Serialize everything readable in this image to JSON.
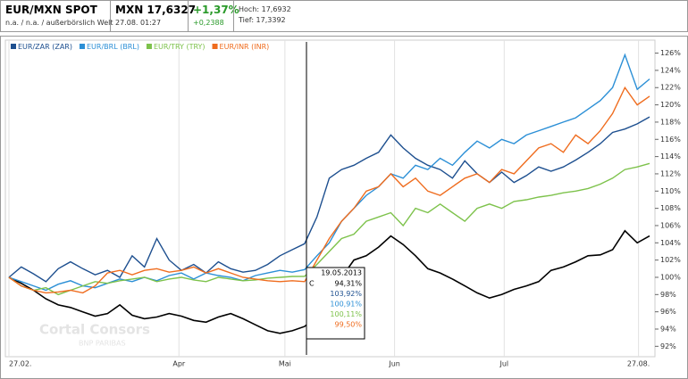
{
  "header": {
    "name": "EUR/MXN SPOT",
    "venue": "n.a. / n.a. / außerbörslich Welt",
    "price": "MXN 17,6327",
    "time": "27.08. 01:27",
    "change_pct": "+1,37%",
    "change_abs": "+0,2388",
    "high": "Hoch: 17,6932",
    "low": "Tief: 17,3392"
  },
  "chart_data": {
    "type": "line",
    "x": [
      0,
      1,
      2,
      3,
      4,
      5,
      6,
      7,
      8,
      9,
      10,
      11,
      12,
      13,
      14,
      15,
      16,
      17,
      18,
      19,
      20,
      21,
      22,
      23,
      24,
      25,
      26,
      27,
      28,
      29,
      30,
      31,
      32,
      33,
      34,
      35,
      36,
      37,
      38,
      39,
      40,
      41,
      42,
      43,
      44,
      45,
      46,
      47,
      48,
      49,
      50,
      51,
      52
    ],
    "series": [
      {
        "color": "#000000",
        "values": [
          100,
          99.3,
          98.5,
          97.5,
          96.8,
          96.5,
          96,
          95.5,
          95.8,
          96.8,
          95.6,
          95.2,
          95.4,
          95.8,
          95.5,
          95,
          94.8,
          95.4,
          95.8,
          95.2,
          94.5,
          93.8,
          93.5,
          93.8,
          94.3,
          95.5,
          97.5,
          100,
          102,
          102.5,
          103.5,
          104.8,
          103.8,
          102.5,
          101,
          100.5,
          99.8,
          99,
          98.2,
          97.6,
          98,
          98.6,
          99,
          99.5,
          100.8,
          101.2,
          101.8,
          102.5,
          102.6,
          103.2,
          105.4,
          104,
          104.8
        ]
      },
      {
        "name": "EUR/ZAR (ZAR)",
        "color": "#1d4f8f",
        "values": [
          100,
          101.2,
          100.4,
          99.5,
          101,
          101.8,
          101,
          100.3,
          100.8,
          100,
          102.5,
          101.2,
          104.5,
          102,
          100.8,
          101.5,
          100.5,
          101.8,
          101,
          100.6,
          100.8,
          101.5,
          102.5,
          103.2,
          103.9,
          107,
          111.5,
          112.5,
          113,
          113.8,
          114.5,
          116.5,
          115,
          113.8,
          113,
          112.5,
          111.5,
          113.5,
          112,
          111,
          112.2,
          111,
          111.8,
          112.8,
          112.3,
          112.8,
          113.6,
          114.5,
          115.5,
          116.8,
          117.2,
          117.8,
          118.6
        ]
      },
      {
        "name": "EUR/BRL (BRL)",
        "color": "#2b8fd6",
        "values": [
          100,
          99.5,
          99,
          98.5,
          99.2,
          99.6,
          99,
          98.8,
          99.3,
          99.8,
          99.5,
          100,
          99.6,
          100.2,
          100.5,
          99.8,
          100.5,
          100.2,
          100,
          99.6,
          100.2,
          100.5,
          100.8,
          100.6,
          100.9,
          102.5,
          104,
          106.5,
          108,
          109.5,
          110.5,
          112,
          111.5,
          113,
          112.5,
          113.8,
          113,
          114.5,
          115.8,
          115,
          116,
          115.5,
          116.5,
          117,
          117.5,
          118,
          118.5,
          119.5,
          120.5,
          122,
          125.8,
          121.8,
          123
        ]
      },
      {
        "name": "EUR/TRY (TRY)",
        "color": "#7dc24b",
        "values": [
          100,
          99,
          98.5,
          98.8,
          98,
          98.5,
          99,
          99.5,
          99.3,
          99.6,
          99.8,
          100,
          99.5,
          99.8,
          100,
          99.7,
          99.5,
          100,
          99.8,
          99.6,
          99.7,
          99.9,
          100,
          100.1,
          100.11,
          101.5,
          103,
          104.5,
          105,
          106.5,
          107,
          107.5,
          106,
          108,
          107.5,
          108.5,
          107.5,
          106.5,
          108,
          108.5,
          108,
          108.8,
          109,
          109.3,
          109.5,
          109.8,
          110,
          110.3,
          110.8,
          111.5,
          112.5,
          112.8,
          113.2
        ]
      },
      {
        "name": "EUR/INR (INR)",
        "color": "#ef6c1e",
        "values": [
          100,
          99,
          98.5,
          98.2,
          98.3,
          98.5,
          98.2,
          99,
          100.5,
          100.8,
          100.3,
          100.8,
          101,
          100.6,
          100.8,
          101.2,
          100.5,
          101,
          100.5,
          100,
          99.8,
          99.6,
          99.5,
          99.6,
          99.5,
          102,
          104.5,
          106.5,
          108,
          110,
          110.5,
          112,
          110.5,
          111.5,
          110,
          109.5,
          110.5,
          111.5,
          112,
          111,
          112.5,
          112,
          113.5,
          115,
          115.5,
          114.5,
          116.5,
          115.5,
          117,
          119,
          122,
          120,
          121
        ]
      }
    ],
    "xlim": [
      0,
      52
    ],
    "xticks": [
      {
        "value": 0,
        "label": "27.02."
      },
      {
        "value": 13.8,
        "label": "Apr"
      },
      {
        "value": 22.4,
        "label": "Mai"
      },
      {
        "value": 31.3,
        "label": "Jun"
      },
      {
        "value": 40.2,
        "label": "Jul"
      },
      {
        "value": 51.1,
        "label": "27.08."
      }
    ],
    "ylim": [
      91,
      127.3
    ],
    "yticks": [
      {
        "value": 92,
        "label": "92%"
      },
      {
        "value": 94,
        "label": "94%"
      },
      {
        "value": 96,
        "label": "96%"
      },
      {
        "value": 98,
        "label": "98%"
      },
      {
        "value": 100,
        "label": "100%"
      },
      {
        "value": 102,
        "label": "102%"
      },
      {
        "value": 104,
        "label": "104%"
      },
      {
        "value": 106,
        "label": "106%"
      },
      {
        "value": 108,
        "label": "108%"
      },
      {
        "value": 110,
        "label": "110%"
      },
      {
        "value": 112,
        "label": "112%"
      },
      {
        "value": 114,
        "label": "114%"
      },
      {
        "value": 116,
        "label": "116%"
      },
      {
        "value": 118,
        "label": "118%"
      },
      {
        "value": 120,
        "label": "120%"
      },
      {
        "value": 122,
        "label": "122%"
      },
      {
        "value": 124,
        "label": "124%"
      },
      {
        "value": 126,
        "label": "126%"
      }
    ],
    "grid": true,
    "legend": "top-left",
    "watermark": "Cortal Consors",
    "watermark_sub": "BNP PARIBAS",
    "tooltip": {
      "date": "19.05.2013",
      "marker": "C",
      "labels": [
        "94,31%",
        "103,92%",
        "100,91%",
        "100,11%",
        "99,50%"
      ]
    }
  }
}
